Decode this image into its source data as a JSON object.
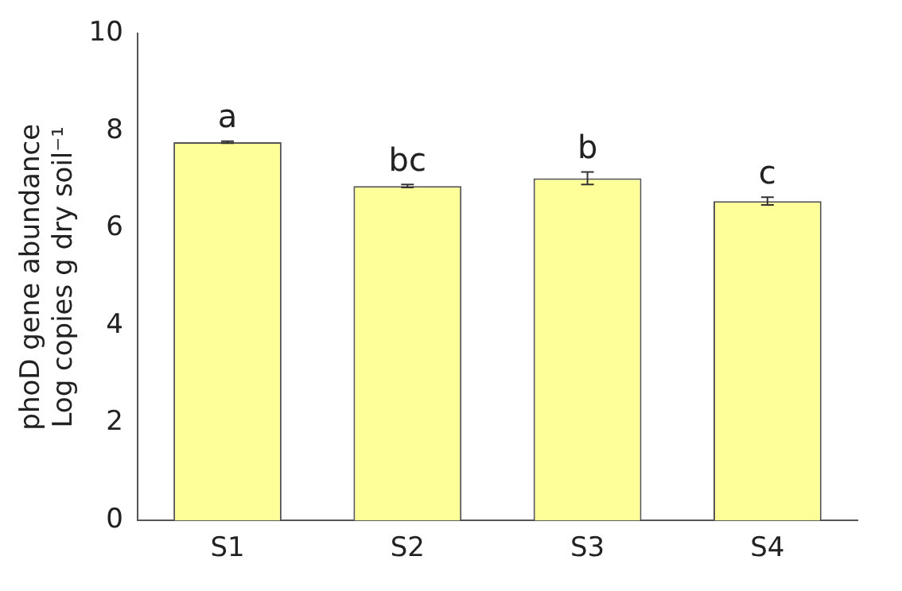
{
  "chart_data": {
    "type": "bar",
    "ylabel": "phoD gene abundance\nLog copies g dry soil⁻¹",
    "categories": [
      "S1",
      "S2",
      "S3",
      "S4"
    ],
    "values": [
      7.77,
      6.87,
      7.03,
      6.56
    ],
    "errors": [
      0.02,
      0.03,
      0.13,
      0.08
    ],
    "color": "#ffff99",
    "ylim": [
      0,
      10
    ],
    "yticks": [
      0,
      2,
      4,
      6,
      8,
      10
    ],
    "grid": false,
    "legend": false,
    "annotations": [
      {
        "text": "a",
        "x": "S1",
        "y": 7.79
      },
      {
        "text": "bc",
        "x": "S2",
        "y": 6.9
      },
      {
        "text": "b",
        "x": "S3",
        "y": 7.16
      },
      {
        "text": "c",
        "x": "S4",
        "y": 6.64
      }
    ]
  }
}
